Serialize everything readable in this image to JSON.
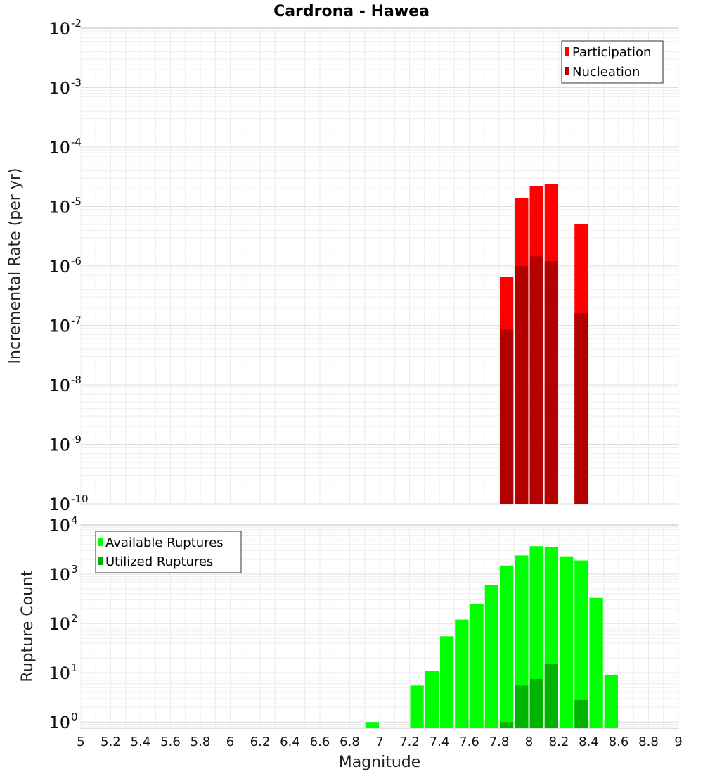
{
  "chart_data": [
    {
      "type": "bar",
      "title": "Cardrona - Hawea",
      "xlabel": "",
      "ylabel": "Incremental Rate (per yr)",
      "yscale": "log",
      "ylim": [
        1e-10,
        0.01
      ],
      "xlim": [
        5,
        9
      ],
      "bin_width": 0.1,
      "legend_position": "top-right",
      "colors": {
        "Participation": "#ff0000",
        "Nucleation": "#b30000"
      },
      "series": [
        {
          "name": "Participation",
          "x": [
            7.85,
            7.95,
            8.05,
            8.15,
            8.35
          ],
          "values": [
            6.5e-07,
            1.4e-05,
            2.2e-05,
            2.4e-05,
            5e-06
          ]
        },
        {
          "name": "Nucleation",
          "x": [
            7.85,
            7.95,
            8.05,
            8.15,
            8.35
          ],
          "values": [
            8.5e-08,
            1e-06,
            1.45e-06,
            1.2e-06,
            1.6e-07
          ]
        }
      ]
    },
    {
      "type": "bar",
      "title": "",
      "xlabel": "Magnitude",
      "ylabel": "Rupture Count",
      "yscale": "log",
      "ylim": [
        0.75,
        10000
      ],
      "xlim": [
        5,
        9
      ],
      "bin_width": 0.1,
      "legend_position": "top-left",
      "colors": {
        "Available Ruptures": "#00ff00",
        "Utilized Ruptures": "#00b300"
      },
      "series": [
        {
          "name": "Available Ruptures",
          "x": [
            6.95,
            7.25,
            7.35,
            7.45,
            7.55,
            7.65,
            7.75,
            7.85,
            7.95,
            8.05,
            8.15,
            8.25,
            8.35,
            8.45,
            8.55
          ],
          "values": [
            1,
            5.5,
            11,
            55,
            120,
            250,
            600,
            1500,
            2400,
            3700,
            3500,
            2300,
            1900,
            330,
            9
          ]
        },
        {
          "name": "Utilized Ruptures",
          "x": [
            7.85,
            7.95,
            8.05,
            8.15,
            8.35
          ],
          "values": [
            1,
            5.5,
            7.5,
            15,
            2.8
          ]
        }
      ]
    }
  ],
  "ticks": {
    "x": [
      "5",
      "5.2",
      "5.4",
      "5.6",
      "5.8",
      "6",
      "6.2",
      "6.4",
      "6.6",
      "6.8",
      "7",
      "7.2",
      "7.4",
      "7.6",
      "7.8",
      "8",
      "8.2",
      "8.4",
      "8.6",
      "8.8",
      "9"
    ],
    "top_y_base": [
      "10",
      "10",
      "10",
      "10",
      "10",
      "10",
      "10",
      "10",
      "10"
    ],
    "top_y_exp": [
      "-2",
      "-3",
      "-4",
      "-5",
      "-6",
      "-7",
      "-8",
      "-9",
      "-10"
    ],
    "bottom_y_base": [
      "10",
      "10",
      "10",
      "10",
      "10"
    ],
    "bottom_y_exp": [
      "4",
      "3",
      "2",
      "1",
      "0"
    ]
  }
}
